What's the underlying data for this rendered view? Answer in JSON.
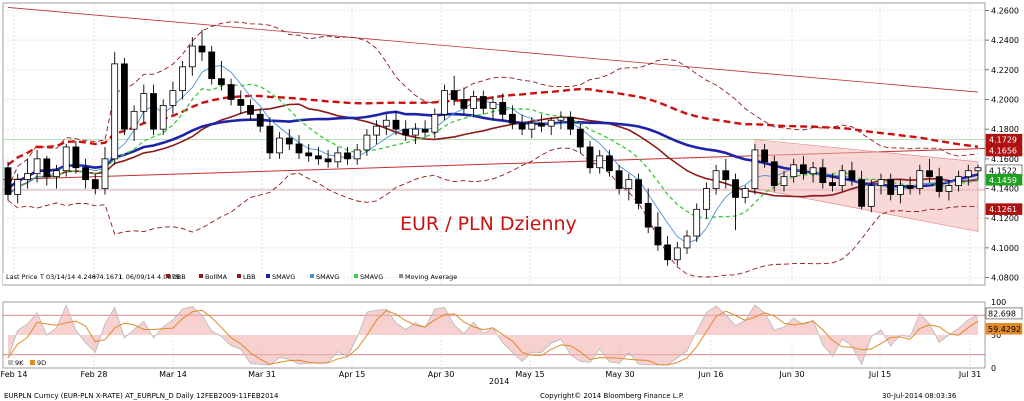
{
  "chart_data": {
    "type": "candlestick",
    "title": "EUR / PLN Dzienny",
    "x_tick_labels": [
      "Feb 14",
      "Feb 28",
      "Mar 14",
      "Mar 31",
      "Apr 15",
      "Apr 30",
      "May 15",
      "May 30",
      "Jun 16",
      "Jun 30",
      "Jul 15",
      "Jul 31"
    ],
    "year_label": "2014",
    "y_ticks": [
      "4.2600",
      "4.2400",
      "4.2200",
      "4.2000",
      "4.1800",
      "4.1600",
      "4.1400",
      "4.1200",
      "4.1000",
      "4.0800"
    ],
    "ylim": [
      4.075,
      4.265
    ],
    "price_badges": [
      {
        "label": "4.1729",
        "value": 4.1729,
        "color": "#b01010"
      },
      {
        "label": "4.1656",
        "value": 4.1656,
        "color": "#b01010"
      },
      {
        "label": "4.1522",
        "value": 4.1522,
        "color": "#ffffff"
      },
      {
        "label": "4.1459",
        "value": 4.1459,
        "color": "#20a020"
      },
      {
        "label": "4.1261",
        "value": 4.1261,
        "color": "#b01010"
      }
    ],
    "legend": [
      "Last Price",
      "T 03/14/14 4.2467",
      "+ 4.1671",
      "⊥ 06/09/14 4.0879",
      "UBB",
      "BollMA",
      "LBB",
      "SMAVG",
      "SMAVG",
      "SMAVG",
      "Moving Average"
    ],
    "candles": [
      [
        4.154,
        4.158,
        4.132,
        4.136
      ],
      [
        4.136,
        4.15,
        4.13,
        4.146
      ],
      [
        4.146,
        4.16,
        4.14,
        4.15
      ],
      [
        4.15,
        4.166,
        4.144,
        4.16
      ],
      [
        4.16,
        4.162,
        4.142,
        4.148
      ],
      [
        4.148,
        4.156,
        4.14,
        4.152
      ],
      [
        4.152,
        4.17,
        4.148,
        4.168
      ],
      [
        4.168,
        4.172,
        4.15,
        4.154
      ],
      [
        4.154,
        4.16,
        4.14,
        4.146
      ],
      [
        4.146,
        4.15,
        4.136,
        4.14
      ],
      [
        4.14,
        4.168,
        4.136,
        4.16
      ],
      [
        4.16,
        4.232,
        4.156,
        4.224
      ],
      [
        4.224,
        4.228,
        4.176,
        4.18
      ],
      [
        4.18,
        4.196,
        4.172,
        4.192
      ],
      [
        4.192,
        4.21,
        4.184,
        4.204
      ],
      [
        4.204,
        4.21,
        4.176,
        4.18
      ],
      [
        4.18,
        4.2,
        4.176,
        4.196
      ],
      [
        4.196,
        4.212,
        4.19,
        4.206
      ],
      [
        4.206,
        4.226,
        4.2,
        4.222
      ],
      [
        4.222,
        4.242,
        4.216,
        4.236
      ],
      [
        4.236,
        4.247,
        4.226,
        4.232
      ],
      [
        4.232,
        4.236,
        4.21,
        4.214
      ],
      [
        4.214,
        4.226,
        4.206,
        4.21
      ],
      [
        4.21,
        4.214,
        4.196,
        4.2
      ],
      [
        4.2,
        4.206,
        4.19,
        4.196
      ],
      [
        4.196,
        4.2,
        4.186,
        4.19
      ],
      [
        4.19,
        4.194,
        4.178,
        4.182
      ],
      [
        4.182,
        4.188,
        4.16,
        4.164
      ],
      [
        4.164,
        4.178,
        4.16,
        4.174
      ],
      [
        4.174,
        4.18,
        4.166,
        4.17
      ],
      [
        4.17,
        4.176,
        4.16,
        4.164
      ],
      [
        4.164,
        4.17,
        4.158,
        4.162
      ],
      [
        4.162,
        4.168,
        4.156,
        4.16
      ],
      [
        4.16,
        4.166,
        4.154,
        4.158
      ],
      [
        4.158,
        4.168,
        4.154,
        4.164
      ],
      [
        4.164,
        4.168,
        4.156,
        4.16
      ],
      [
        4.16,
        4.17,
        4.156,
        4.166
      ],
      [
        4.166,
        4.18,
        4.162,
        4.176
      ],
      [
        4.176,
        4.186,
        4.17,
        4.182
      ],
      [
        4.182,
        4.19,
        4.176,
        4.186
      ],
      [
        4.186,
        4.192,
        4.176,
        4.18
      ],
      [
        4.18,
        4.186,
        4.172,
        4.176
      ],
      [
        4.176,
        4.184,
        4.17,
        4.18
      ],
      [
        4.18,
        4.186,
        4.174,
        4.178
      ],
      [
        4.178,
        4.194,
        4.174,
        4.19
      ],
      [
        4.19,
        4.21,
        4.186,
        4.206
      ],
      [
        4.206,
        4.216,
        4.196,
        4.2
      ],
      [
        4.2,
        4.208,
        4.19,
        4.194
      ],
      [
        4.194,
        4.206,
        4.188,
        4.202
      ],
      [
        4.202,
        4.206,
        4.19,
        4.194
      ],
      [
        4.194,
        4.202,
        4.186,
        4.198
      ],
      [
        4.198,
        4.204,
        4.186,
        4.19
      ],
      [
        4.19,
        4.196,
        4.18,
        4.184
      ],
      [
        4.184,
        4.19,
        4.176,
        4.18
      ],
      [
        4.18,
        4.188,
        4.174,
        4.184
      ],
      [
        4.184,
        4.19,
        4.178,
        4.182
      ],
      [
        4.182,
        4.188,
        4.176,
        4.186
      ],
      [
        4.186,
        4.192,
        4.18,
        4.188
      ],
      [
        4.188,
        4.192,
        4.176,
        4.18
      ],
      [
        4.18,
        4.184,
        4.164,
        4.168
      ],
      [
        4.168,
        4.172,
        4.15,
        4.154
      ],
      [
        4.154,
        4.166,
        4.15,
        4.162
      ],
      [
        4.162,
        4.166,
        4.148,
        4.152
      ],
      [
        4.152,
        4.156,
        4.136,
        4.14
      ],
      [
        4.14,
        4.15,
        4.132,
        4.146
      ],
      [
        4.146,
        4.15,
        4.126,
        4.13
      ],
      [
        4.13,
        4.14,
        4.11,
        4.114
      ],
      [
        4.114,
        4.124,
        4.098,
        4.102
      ],
      [
        4.102,
        4.108,
        4.088,
        4.092
      ],
      [
        4.092,
        4.104,
        4.088,
        4.1
      ],
      [
        4.1,
        4.112,
        4.096,
        4.108
      ],
      [
        4.108,
        4.13,
        4.104,
        4.126
      ],
      [
        4.126,
        4.144,
        4.12,
        4.14
      ],
      [
        4.14,
        4.156,
        4.136,
        4.152
      ],
      [
        4.152,
        4.16,
        4.14,
        4.146
      ],
      [
        4.146,
        4.15,
        4.112,
        4.134
      ],
      [
        4.134,
        4.142,
        4.13,
        4.14
      ],
      [
        4.14,
        4.17,
        4.136,
        4.166
      ],
      [
        4.166,
        4.17,
        4.154,
        4.158
      ],
      [
        4.158,
        4.162,
        4.138,
        4.142
      ],
      [
        4.142,
        4.152,
        4.138,
        4.148
      ],
      [
        4.148,
        4.16,
        4.144,
        4.156
      ],
      [
        4.156,
        4.162,
        4.146,
        4.15
      ],
      [
        4.15,
        4.158,
        4.144,
        4.154
      ],
      [
        4.154,
        4.16,
        4.14,
        4.144
      ],
      [
        4.144,
        4.15,
        4.138,
        4.142
      ],
      [
        4.142,
        4.156,
        4.138,
        4.152
      ],
      [
        4.152,
        4.158,
        4.142,
        4.146
      ],
      [
        4.146,
        4.152,
        4.126,
        4.128
      ],
      [
        4.128,
        4.146,
        4.124,
        4.142
      ],
      [
        4.142,
        4.15,
        4.136,
        4.146
      ],
      [
        4.146,
        4.15,
        4.132,
        4.136
      ],
      [
        4.136,
        4.146,
        4.13,
        4.142
      ],
      [
        4.142,
        4.148,
        4.136,
        4.14
      ],
      [
        4.14,
        4.156,
        4.136,
        4.152
      ],
      [
        4.152,
        4.16,
        4.144,
        4.148
      ],
      [
        4.148,
        4.154,
        4.134,
        4.138
      ],
      [
        4.138,
        4.146,
        4.132,
        4.142
      ],
      [
        4.142,
        4.152,
        4.138,
        4.148
      ],
      [
        4.148,
        4.156,
        4.142,
        4.152
      ],
      [
        4.152,
        4.156,
        4.146,
        4.154
      ]
    ],
    "oscillator": {
      "y_ticks": [
        "100",
        "50",
        "0"
      ],
      "ylim": [
        0,
        100
      ],
      "badges": [
        {
          "label": "82.698",
          "value": 82.698,
          "color": "#ffffff"
        },
        {
          "label": "59.4292",
          "value": 59.4292,
          "color": "#e08a2a"
        }
      ],
      "legend": [
        "9K",
        "9D"
      ]
    }
  },
  "footer": {
    "left": "EURPLN Curncy (EUR-PLN X-RATE) AT_EURPLN_D  Daily 12FEB2009-11FEB2014",
    "center": "Copyright© 2014 Bloomberg Finance L.P.",
    "right": "30-Jul-2014 08:03:36"
  },
  "colors": {
    "candle_up": "#ffffff",
    "candle_down": "#000000",
    "bollinger_band": "#8b1a1a",
    "sma_blue": "#1f23a8",
    "sma_dashed_red": "#cc1010",
    "sma_green": "#44cc44",
    "sma_maroon": "#8b1a1a",
    "trendline": "#c03030",
    "channel_fill": "#f4b8b8",
    "title": "#cc1111"
  }
}
